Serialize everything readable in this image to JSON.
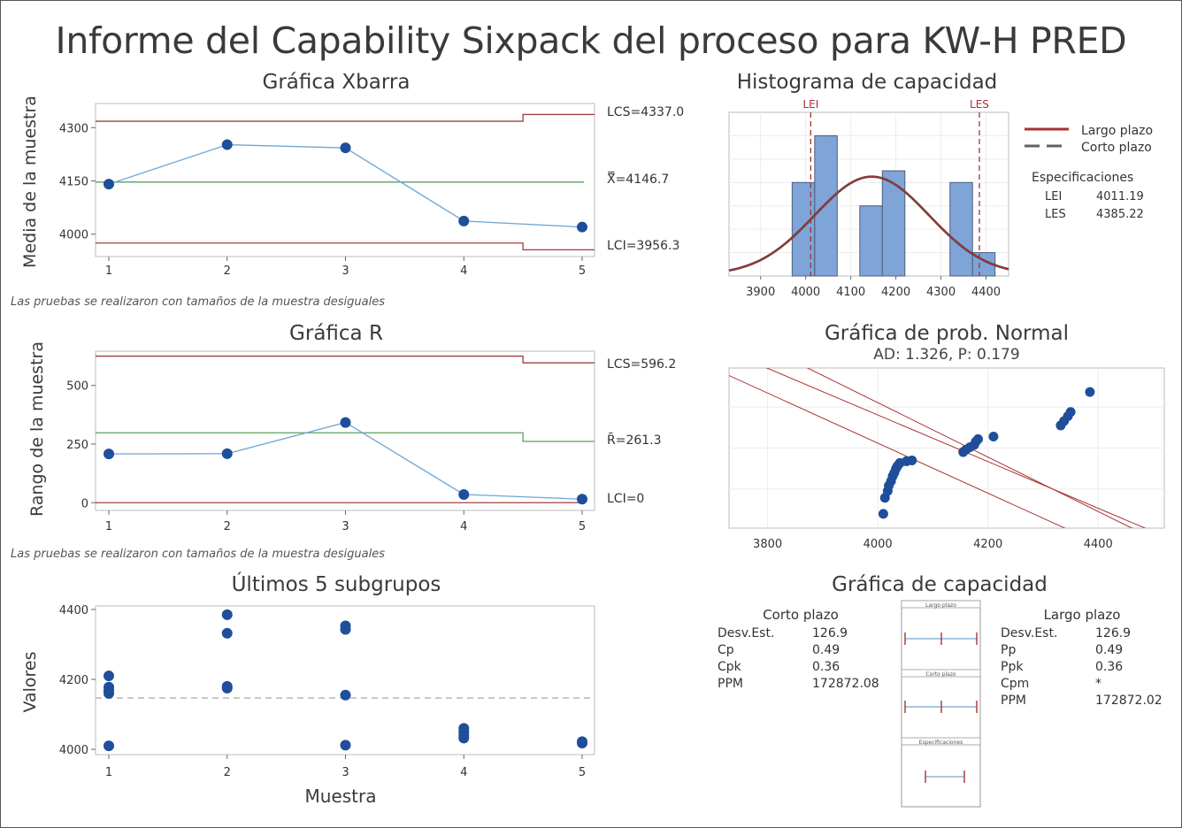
{
  "title": "Informe del Capability Sixpack del proceso para KW-H PRED",
  "colors": {
    "point": "#1f4e9a",
    "line": "#6fa6d3",
    "center": "#5aa05a",
    "limit": "#a0403f",
    "bar": "#7ea4d8",
    "fit_long": "#a83232",
    "fit_short": "#404040"
  },
  "note_unequal": "Las pruebas se realizaron con tamaños de la muestra desiguales",
  "chart_data": [
    {
      "id": "xbar",
      "type": "line",
      "title": "Gráfica Xbarra",
      "ylabel": "Media de la muestra",
      "x": [
        1,
        2,
        3,
        4,
        5
      ],
      "values": [
        4141,
        4252,
        4243,
        4037,
        4020
      ],
      "yticks": [
        4000,
        4150,
        4300
      ],
      "ylim": [
        3937,
        4368
      ],
      "ucl": [
        4318,
        4318,
        4318,
        4318,
        4337
      ],
      "lcl": [
        3975,
        3975,
        3975,
        3975,
        3956
      ],
      "center": 4146.7,
      "labels": {
        "ucl": "LCS=4337.0",
        "center": "X̿=4146.7",
        "lcl": "LCI=3956.3"
      },
      "note": "Las pruebas se realizaron con tamaños de la muestra desiguales"
    },
    {
      "id": "r",
      "type": "line",
      "title": "Gráfica R",
      "ylabel": "Rango de la muestra",
      "x": [
        1,
        2,
        3,
        4,
        5
      ],
      "values": [
        208,
        209,
        342,
        35,
        15
      ],
      "yticks": [
        0,
        250,
        500
      ],
      "ylim": [
        -33,
        646
      ],
      "ucl": [
        625,
        625,
        625,
        625,
        596.2
      ],
      "center_steps": [
        298,
        298,
        298,
        298,
        261.3
      ],
      "lcl": [
        0,
        0,
        0,
        0,
        0
      ],
      "labels": {
        "ucl": "LCS=596.2",
        "center": "R̄=261.3",
        "lcl": "LCI=0"
      },
      "note": "Las pruebas se realizaron con tamaños de la muestra desiguales"
    },
    {
      "id": "last5",
      "type": "scatter",
      "title": "Últimos 5 subgrupos",
      "xlabel": "Muestra",
      "ylabel": "Valores",
      "yticks": [
        4000,
        4200,
        4400
      ],
      "ylim": [
        3985,
        4410
      ],
      "reference": 4146.7,
      "points": [
        {
          "x": 1,
          "y": 4210
        },
        {
          "x": 1,
          "y": 4178
        },
        {
          "x": 1,
          "y": 4168
        },
        {
          "x": 1,
          "y": 4160
        },
        {
          "x": 1,
          "y": 4010
        },
        {
          "x": 2,
          "y": 4385
        },
        {
          "x": 2,
          "y": 4332
        },
        {
          "x": 2,
          "y": 4180
        },
        {
          "x": 2,
          "y": 4175
        },
        {
          "x": 3,
          "y": 4353
        },
        {
          "x": 3,
          "y": 4343
        },
        {
          "x": 3,
          "y": 4155
        },
        {
          "x": 3,
          "y": 4012
        },
        {
          "x": 4,
          "y": 4060
        },
        {
          "x": 4,
          "y": 4050
        },
        {
          "x": 4,
          "y": 4040
        },
        {
          "x": 4,
          "y": 4032
        },
        {
          "x": 5,
          "y": 4022
        },
        {
          "x": 5,
          "y": 4018
        }
      ]
    },
    {
      "id": "histogram",
      "type": "bar",
      "title": "Histograma de capacidad",
      "bins": [
        {
          "from": 3970,
          "to": 4020,
          "count": 4
        },
        {
          "from": 4020,
          "to": 4070,
          "count": 6
        },
        {
          "from": 4120,
          "to": 4170,
          "count": 3
        },
        {
          "from": 4170,
          "to": 4220,
          "count": 4.5
        },
        {
          "from": 4320,
          "to": 4370,
          "count": 4
        },
        {
          "from": 4370,
          "to": 4420,
          "count": 1
        }
      ],
      "xticks": [
        3900,
        4000,
        4100,
        4200,
        4300,
        4400
      ],
      "xlim": [
        3830,
        4450
      ],
      "ylim": [
        0,
        7
      ],
      "mean": 4146.7,
      "sd": 126.9,
      "lei": 4011.19,
      "les": 4385.22,
      "lei_label": "LEI",
      "les_label": "LES",
      "legend": [
        {
          "label": "Largo plazo",
          "style": "solid"
        },
        {
          "label": "Corto plazo",
          "style": "dashed"
        }
      ],
      "spec_title": "Especificaciones",
      "spec": [
        {
          "label": "LEI",
          "value": "4011.19"
        },
        {
          "label": "LES",
          "value": "4385.22"
        }
      ]
    },
    {
      "id": "normal",
      "type": "scatter",
      "title": "Gráfica de prob. Normal",
      "subtitle": "AD: 1.326, P: 0.179",
      "xticks": [
        3800,
        4000,
        4200,
        4400
      ],
      "xlim": [
        3730,
        4520
      ],
      "points": [
        {
          "x": 4010,
          "p": 0.02
        },
        {
          "x": 4013,
          "p": 0.06
        },
        {
          "x": 4018,
          "p": 0.09
        },
        {
          "x": 4020,
          "p": 0.12
        },
        {
          "x": 4024,
          "p": 0.15
        },
        {
          "x": 4027,
          "p": 0.19
        },
        {
          "x": 4030,
          "p": 0.22
        },
        {
          "x": 4033,
          "p": 0.26
        },
        {
          "x": 4036,
          "p": 0.29
        },
        {
          "x": 4040,
          "p": 0.32
        },
        {
          "x": 4052,
          "p": 0.34
        },
        {
          "x": 4062,
          "p": 0.35
        },
        {
          "x": 4155,
          "p": 0.45
        },
        {
          "x": 4160,
          "p": 0.48
        },
        {
          "x": 4167,
          "p": 0.51
        },
        {
          "x": 4175,
          "p": 0.54
        },
        {
          "x": 4178,
          "p": 0.58
        },
        {
          "x": 4182,
          "p": 0.61
        },
        {
          "x": 4210,
          "p": 0.64
        },
        {
          "x": 4332,
          "p": 0.76
        },
        {
          "x": 4338,
          "p": 0.8
        },
        {
          "x": 4345,
          "p": 0.84
        },
        {
          "x": 4350,
          "p": 0.87
        },
        {
          "x": 4385,
          "p": 0.96
        }
      ]
    },
    {
      "id": "capability",
      "type": "table",
      "title": "Gráfica de capacidad",
      "short_title": "Corto plazo",
      "short": [
        {
          "label": "Desv.Est.",
          "value": "126.9"
        },
        {
          "label": "Cp",
          "value": "0.49"
        },
        {
          "label": "Cpk",
          "value": "0.36"
        },
        {
          "label": "PPM",
          "value": "172872.08"
        }
      ],
      "long_title": "Largo plazo",
      "long": [
        {
          "label": "Desv.Est.",
          "value": "126.9"
        },
        {
          "label": "Pp",
          "value": "0.49"
        },
        {
          "label": "Ppk",
          "value": "0.36"
        },
        {
          "label": "Cpm",
          "value": "*"
        },
        {
          "label": "PPM",
          "value": "172872.02"
        }
      ],
      "box_labels": [
        "Largo plazo",
        "Corto plazo",
        "Especificaciones"
      ]
    }
  ]
}
